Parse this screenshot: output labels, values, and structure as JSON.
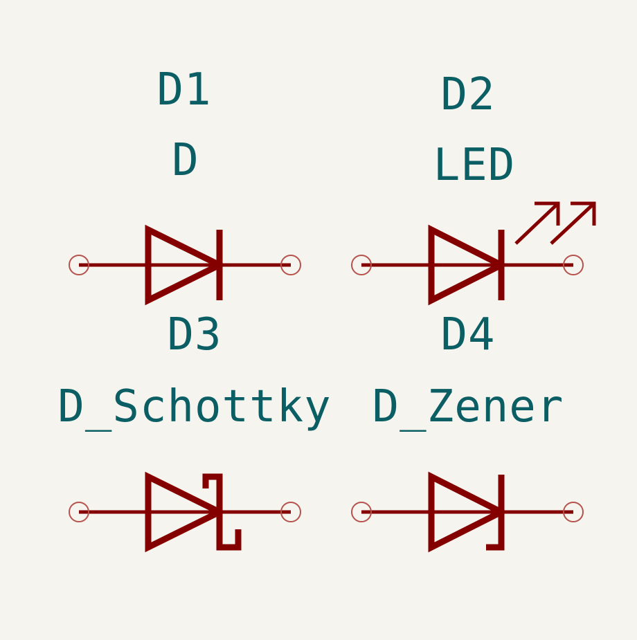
{
  "components": [
    {
      "ref": "D1",
      "value": "D",
      "type": "diode"
    },
    {
      "ref": "D2",
      "value": "LED",
      "type": "led"
    },
    {
      "ref": "D3",
      "value": "D_Schottky",
      "type": "schottky"
    },
    {
      "ref": "D4",
      "value": "D_Zener",
      "type": "zener"
    }
  ],
  "colors": {
    "background": "#f5f4ef",
    "symbol": "#840000",
    "text": "#0b5e63",
    "pin": "#b5524c"
  }
}
